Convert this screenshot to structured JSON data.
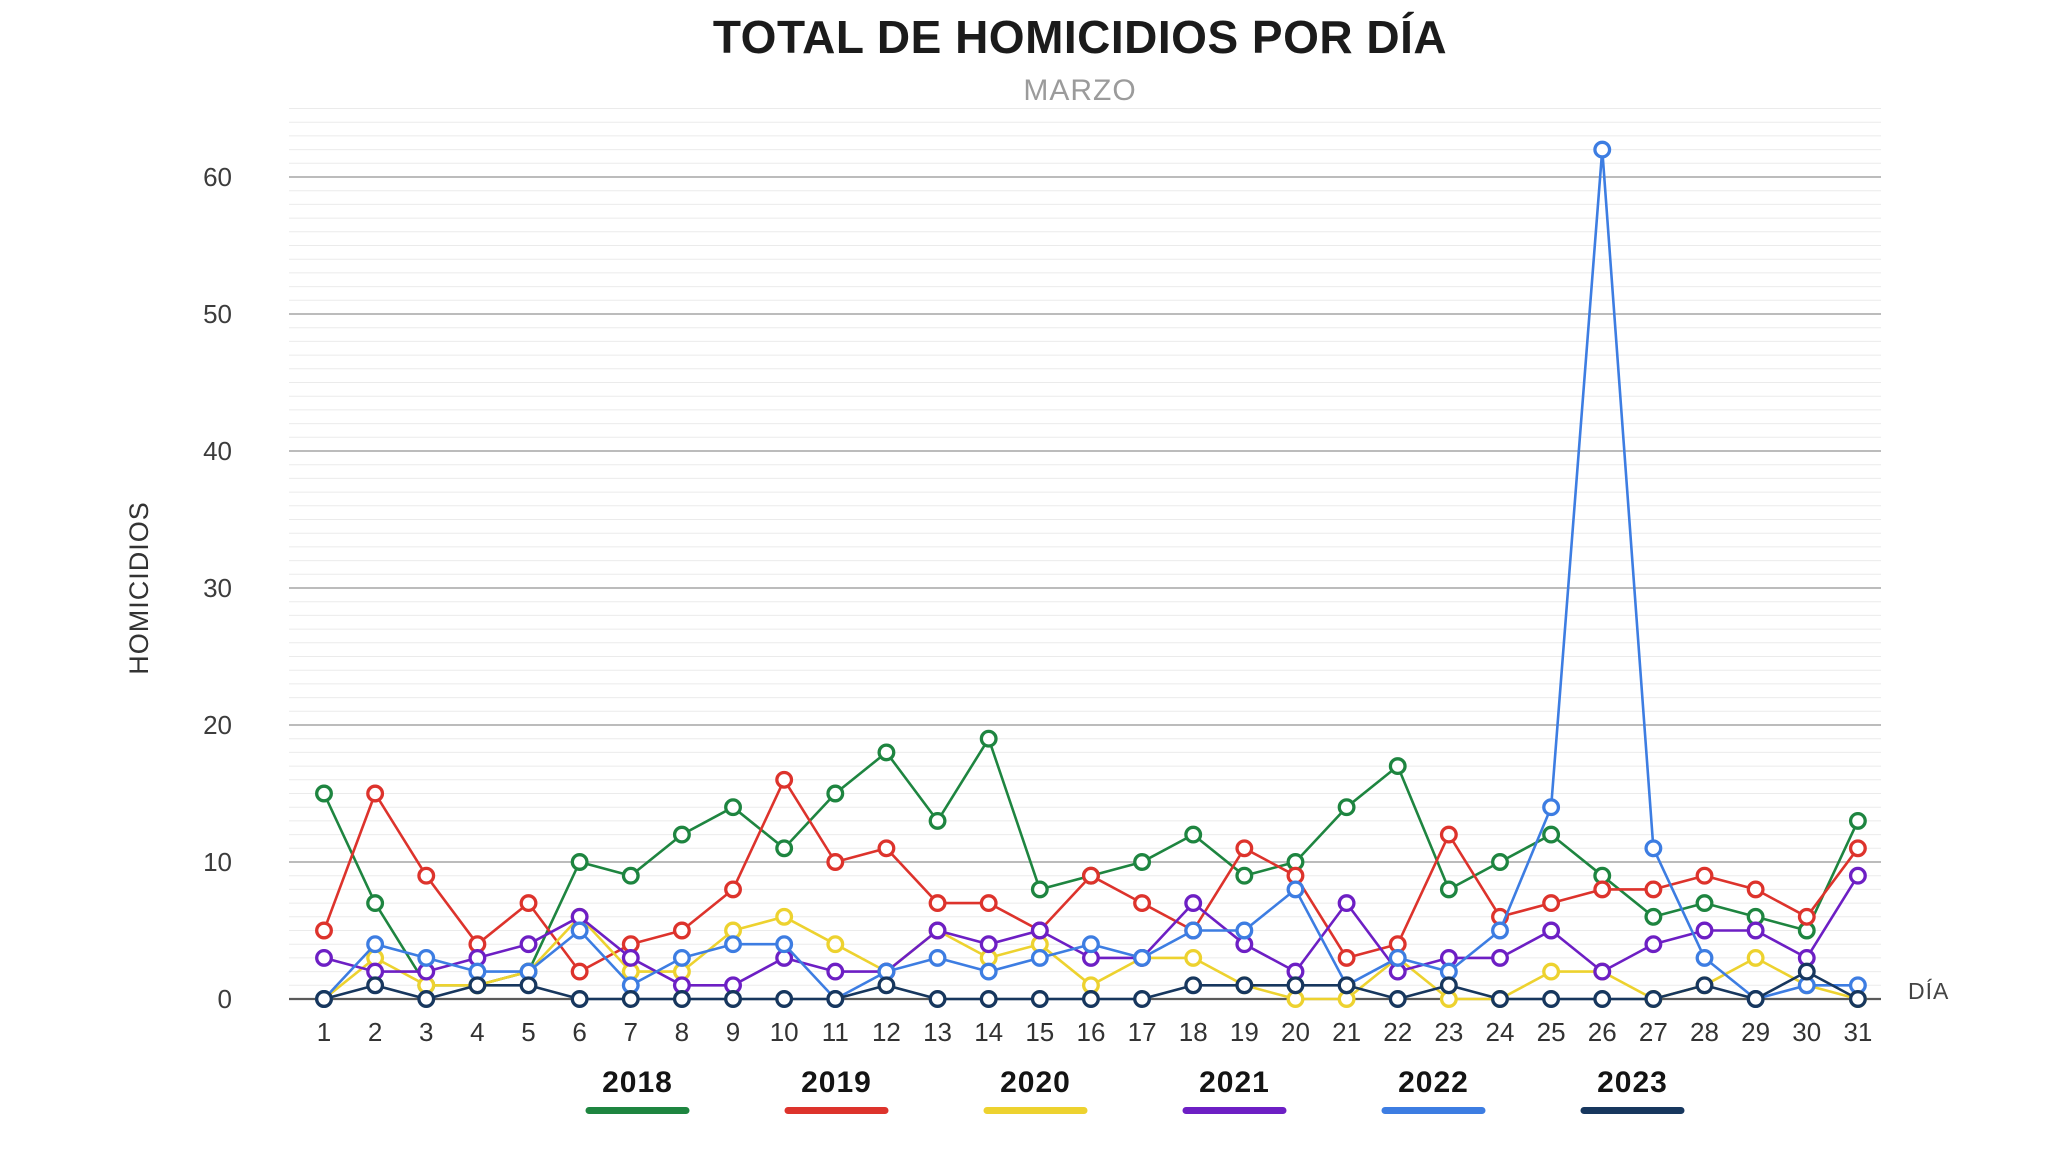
{
  "chart": {
    "title": "TOTAL DE HOMICIDIOS POR DÍA",
    "subtitle": "MARZO",
    "ylabel": "HOMICIDIOS",
    "xlabel": "DÍA"
  },
  "chart_data": {
    "type": "line",
    "title": "TOTAL DE HOMICIDIOS POR DÍA",
    "subtitle": "MARZO",
    "xlabel": "DÍA",
    "ylabel": "HOMICIDIOS",
    "ylim": [
      0,
      65
    ],
    "ytick_step": 10,
    "grid": "horizontal-minor-and-major",
    "legend_position": "bottom",
    "marker": "open-circle",
    "categories": [
      1,
      2,
      3,
      4,
      5,
      6,
      7,
      8,
      9,
      10,
      11,
      12,
      13,
      14,
      15,
      16,
      17,
      18,
      19,
      20,
      21,
      22,
      23,
      24,
      25,
      26,
      27,
      28,
      29,
      30,
      31
    ],
    "series": [
      {
        "name": "2018",
        "color": "#1e8540",
        "values": [
          15,
          7,
          1,
          1,
          2,
          10,
          9,
          12,
          14,
          11,
          15,
          18,
          13,
          19,
          8,
          9,
          10,
          12,
          9,
          10,
          14,
          17,
          8,
          10,
          12,
          9,
          6,
          7,
          6,
          5,
          13
        ]
      },
      {
        "name": "2019",
        "color": "#dd332c",
        "values": [
          5,
          15,
          9,
          4,
          7,
          2,
          4,
          5,
          8,
          16,
          10,
          11,
          7,
          7,
          5,
          9,
          7,
          5,
          11,
          9,
          3,
          4,
          12,
          6,
          7,
          8,
          8,
          9,
          8,
          6,
          11
        ]
      },
      {
        "name": "2020",
        "color": "#edd22f",
        "values": [
          0,
          3,
          1,
          1,
          2,
          6,
          2,
          2,
          5,
          6,
          4,
          2,
          5,
          3,
          4,
          1,
          3,
          3,
          1,
          0,
          0,
          3,
          0,
          0,
          2,
          2,
          0,
          1,
          3,
          1,
          0
        ]
      },
      {
        "name": "2021",
        "color": "#6d1fc4",
        "values": [
          3,
          2,
          2,
          3,
          4,
          6,
          3,
          1,
          1,
          3,
          2,
          2,
          5,
          4,
          5,
          3,
          3,
          7,
          4,
          2,
          7,
          2,
          3,
          3,
          5,
          2,
          4,
          5,
          5,
          3,
          9
        ]
      },
      {
        "name": "2022",
        "color": "#3d7de2",
        "values": [
          0,
          4,
          3,
          2,
          2,
          5,
          1,
          3,
          4,
          4,
          0,
          2,
          3,
          2,
          3,
          4,
          3,
          5,
          5,
          8,
          1,
          3,
          2,
          5,
          14,
          62,
          11,
          3,
          0,
          1,
          1
        ]
      },
      {
        "name": "2023",
        "color": "#17375e",
        "values": [
          0,
          1,
          0,
          1,
          1,
          0,
          0,
          0,
          0,
          0,
          0,
          1,
          0,
          0,
          0,
          0,
          0,
          1,
          1,
          1,
          1,
          0,
          1,
          0,
          0,
          0,
          0,
          1,
          0,
          2,
          0
        ]
      }
    ],
    "yticks": [
      0,
      10,
      20,
      30,
      40,
      50,
      60
    ]
  }
}
